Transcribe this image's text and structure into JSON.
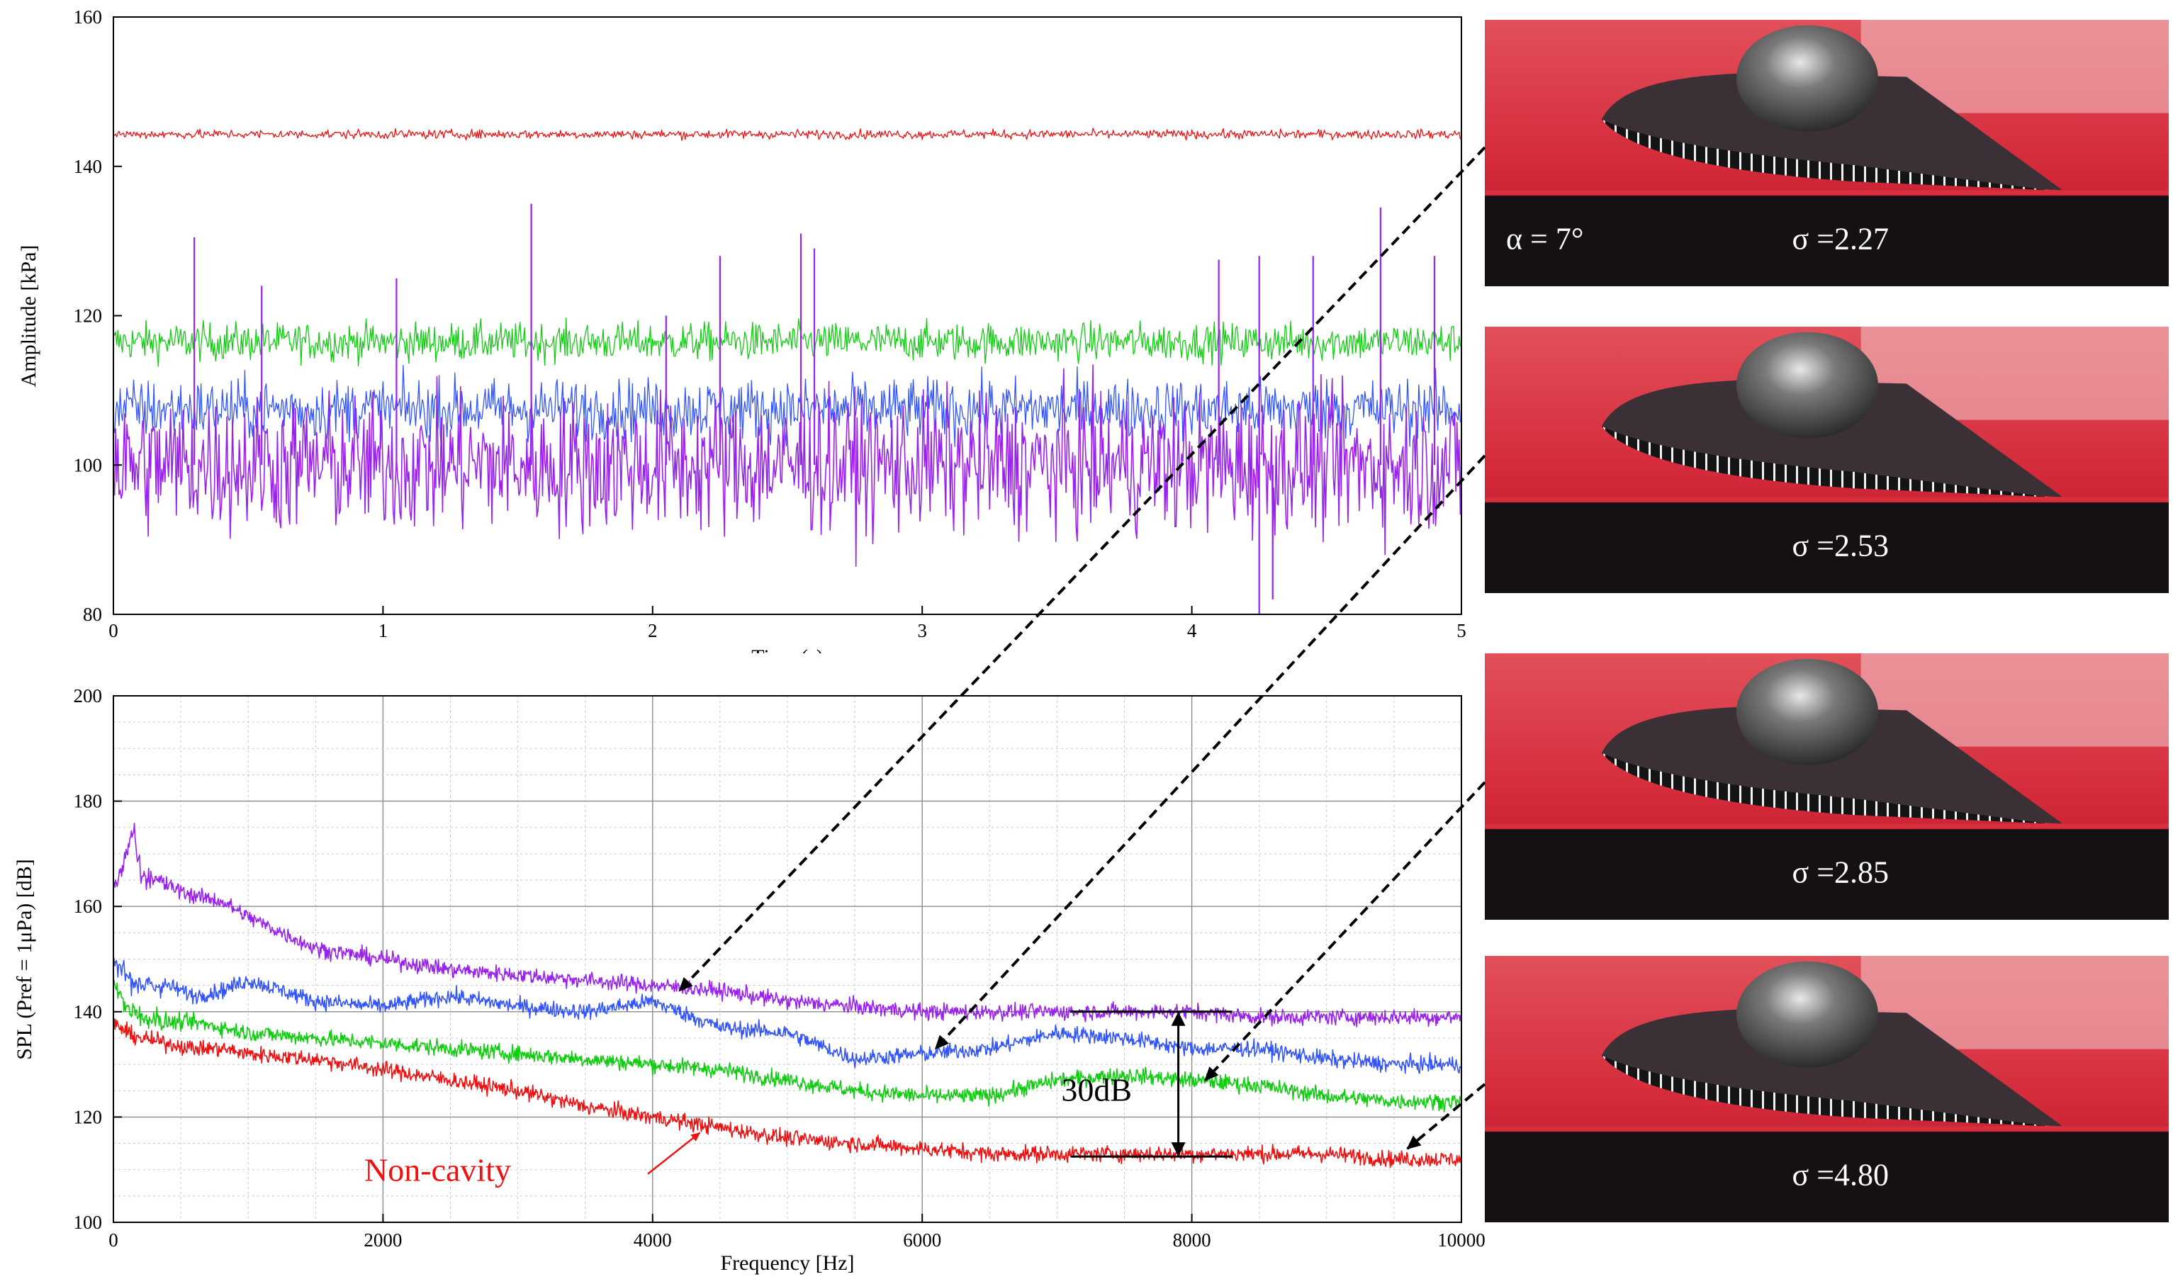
{
  "chart_data": [
    {
      "type": "line",
      "xlabel": "Time (s)",
      "ylabel": "Amplitude [kPa]",
      "xlim": [
        0,
        5
      ],
      "ylim": [
        80,
        160
      ],
      "xticks": [
        0,
        1,
        2,
        3,
        4,
        5
      ],
      "yticks": [
        80,
        100,
        120,
        140,
        160
      ],
      "grid": false,
      "series": [
        {
          "color": "#ee1111",
          "mean": 144.3,
          "band": [
            143.5,
            145.3
          ]
        },
        {
          "color": "#11cc11",
          "mean": 116.5,
          "band": [
            113,
            120.5
          ]
        },
        {
          "color": "#3355ff",
          "mean": 107.5,
          "band": [
            102,
            114
          ]
        },
        {
          "color": "#9922ee",
          "mean": 100,
          "band": [
            86,
            113
          ],
          "spikes": [
            [
              0.3,
              130.5
            ],
            [
              0.55,
              124
            ],
            [
              1.05,
              125
            ],
            [
              1.55,
              135
            ],
            [
              2.05,
              120
            ],
            [
              2.25,
              128
            ],
            [
              2.55,
              131
            ],
            [
              2.6,
              129
            ],
            [
              4.1,
              127.5
            ],
            [
              4.25,
              128
            ],
            [
              4.45,
              128
            ],
            [
              4.7,
              134.5
            ],
            [
              4.9,
              128
            ],
            [
              4.25,
              80
            ],
            [
              4.3,
              82
            ]
          ]
        }
      ]
    },
    {
      "type": "line",
      "xlabel": "Frequency [Hz]",
      "ylabel": "SPL (Pref = 1μPa) [dB]",
      "xlim": [
        0,
        10000
      ],
      "ylim": [
        100,
        200
      ],
      "xticks": [
        0,
        2000,
        4000,
        6000,
        8000,
        10000
      ],
      "yticks": [
        100,
        120,
        140,
        160,
        180,
        200
      ],
      "grid": true,
      "series": [
        {
          "color": "#9922ee",
          "x": [
            0,
            100,
            150,
            200,
            400,
            600,
            800,
            1000,
            1500,
            2000,
            2500,
            3000,
            3500,
            4000,
            4500,
            5000,
            5500,
            6000,
            6500,
            7000,
            7500,
            8000,
            8500,
            9000,
            9500,
            10000
          ],
          "y": [
            163,
            170,
            175,
            166,
            164,
            162,
            161,
            158,
            152,
            150,
            148,
            147,
            146,
            145,
            144,
            142,
            141,
            140,
            140,
            140,
            140,
            140,
            139,
            139,
            139,
            139
          ]
        },
        {
          "color": "#3355ff",
          "x": [
            0,
            100,
            200,
            400,
            600,
            800,
            1000,
            1500,
            2000,
            2500,
            3000,
            3500,
            4000,
            4500,
            5000,
            5500,
            6000,
            6500,
            7000,
            7500,
            8000,
            8500,
            9000,
            9500,
            10000
          ],
          "y": [
            150,
            147,
            145,
            145,
            143,
            144,
            146,
            142,
            141,
            143,
            141,
            140,
            142,
            137,
            136,
            131,
            132,
            133,
            136,
            135,
            133,
            133,
            131,
            130,
            130
          ]
        },
        {
          "color": "#11cc11",
          "x": [
            0,
            100,
            200,
            400,
            600,
            800,
            1000,
            1500,
            2000,
            2500,
            3000,
            3500,
            4000,
            4500,
            5000,
            5500,
            6000,
            6500,
            7000,
            7500,
            8000,
            8500,
            9000,
            9500,
            10000
          ],
          "y": [
            145,
            141,
            139,
            138,
            138,
            137,
            136,
            135,
            134,
            133,
            132,
            131,
            130,
            129,
            127,
            125,
            124,
            124,
            127,
            128,
            127,
            126,
            124,
            123,
            123
          ]
        },
        {
          "color": "#ee1111",
          "x": [
            0,
            100,
            200,
            400,
            600,
            800,
            1000,
            1500,
            2000,
            2500,
            3000,
            3500,
            4000,
            4500,
            5000,
            5500,
            6000,
            6500,
            7000,
            7500,
            8000,
            8500,
            9000,
            9500,
            10000
          ],
          "y": [
            138,
            136,
            135,
            134,
            133,
            133,
            132,
            131,
            129,
            127,
            125,
            122,
            120,
            118,
            116,
            115,
            114,
            113,
            113,
            113,
            113,
            113,
            113,
            112,
            112
          ]
        }
      ],
      "annotations": [
        {
          "text": "Non-cavity",
          "x": 2650,
          "y": 110,
          "color": "#ee1111"
        },
        {
          "text": "30dB",
          "x": 7000,
          "y": 125,
          "color": "#000000"
        }
      ],
      "bracket": {
        "x": 7900,
        "y_top": 140,
        "y_bottom": 112.5,
        "x_left": 7100,
        "x_right": 8300
      },
      "callouts": [
        {
          "from": "sigma-2.27",
          "to_x": 4200,
          "to_y": 144
        },
        {
          "from": "sigma-2.53",
          "to_x": 6100,
          "to_y": 133
        },
        {
          "from": "sigma-2.85",
          "to_x": 8100,
          "to_y": 127
        },
        {
          "from": "sigma-4.80",
          "to_x": 9600,
          "to_y": 114
        }
      ]
    }
  ],
  "photos": [
    {
      "id": "sigma-2.27",
      "sigma": "σ =2.27",
      "alpha": "α = 7°"
    },
    {
      "id": "sigma-2.53",
      "sigma": "σ =2.53"
    },
    {
      "id": "sigma-2.85",
      "sigma": "σ =2.85"
    },
    {
      "id": "sigma-4.80",
      "sigma": "σ =4.80"
    }
  ],
  "colors": {
    "red": "#ee1111",
    "green": "#11cc11",
    "blue": "#3355ff",
    "purple": "#9922ee"
  }
}
